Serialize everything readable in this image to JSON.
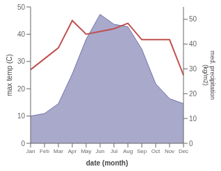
{
  "chart_data": {
    "type": "line",
    "categories": [
      "Jan",
      "Feb",
      "Mar",
      "Apr",
      "May",
      "Jun",
      "Jul",
      "Aug",
      "Sep",
      "Oct",
      "Nov",
      "Dec"
    ],
    "xlabel": "date (month)",
    "ylabel": "max temp (C)",
    "y2label": "med. precipitation\n(kg/m2)",
    "ylim": [
      0,
      50
    ],
    "yticks": [
      0,
      10,
      20,
      30,
      40,
      50
    ],
    "y2lim": [
      0,
      55
    ],
    "y2ticks": [
      0,
      10,
      20,
      30,
      40,
      50
    ],
    "grid": false,
    "series": [
      {
        "type": "area",
        "axis": "y2",
        "color": "#7070aa",
        "values": [
          11,
          12,
          16,
          28,
          42,
          52,
          48,
          47,
          38,
          24,
          18,
          16
        ]
      },
      {
        "type": "line",
        "axis": "y",
        "color": "#c0504d",
        "values": [
          27,
          31,
          35,
          45,
          40,
          41,
          42,
          44,
          38,
          38,
          38,
          25
        ]
      }
    ]
  }
}
